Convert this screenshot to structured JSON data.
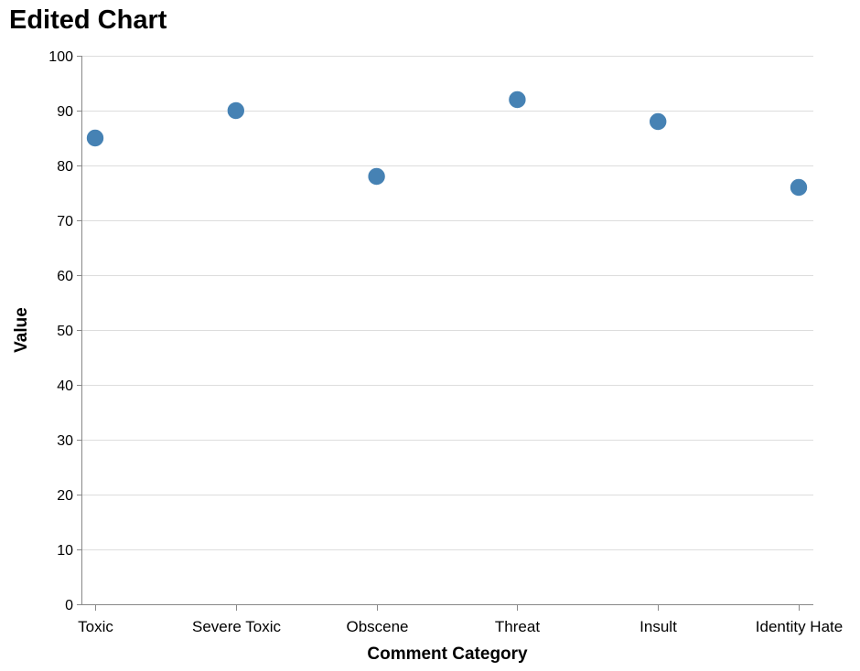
{
  "chart_data": {
    "type": "scatter",
    "title": "Edited Chart",
    "xlabel": "Comment Category",
    "ylabel": "Value",
    "categories": [
      "Toxic",
      "Severe Toxic",
      "Obscene",
      "Threat",
      "Insult",
      "Identity Hate"
    ],
    "values": [
      85,
      90,
      78,
      92,
      88,
      76
    ],
    "ylim": [
      0,
      100
    ],
    "yticks": [
      0,
      10,
      20,
      30,
      40,
      50,
      60,
      70,
      80,
      90,
      100
    ],
    "grid": true,
    "legend": "none",
    "point_color": "#4682b4"
  }
}
